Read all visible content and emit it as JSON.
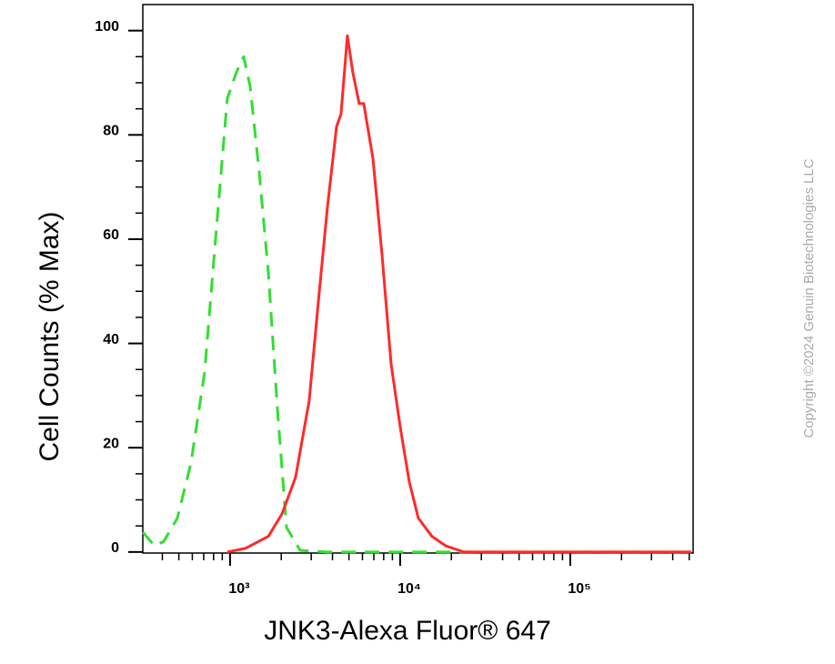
{
  "chart_data": {
    "type": "line",
    "x_label": "JNK3-Alexa Fluor® 647",
    "y_label": "Cell Counts (% Max)",
    "watermark": "Copyright ©2024 Genuin Biotechnologies LLC",
    "xscale": "log",
    "xlim": [
      307,
      527000
    ],
    "ylim": [
      -0.2,
      105
    ],
    "xticks": [
      {
        "value": 1000,
        "label": "10³"
      },
      {
        "value": 10000,
        "label": "10⁴"
      },
      {
        "value": 100000,
        "label": "10⁵"
      }
    ],
    "xminorticks": [
      400,
      500,
      600,
      700,
      800,
      900,
      2000,
      3000,
      4000,
      5000,
      6000,
      7000,
      8000,
      9000,
      20000,
      30000,
      40000,
      50000,
      60000,
      70000,
      80000,
      90000,
      200000,
      300000,
      400000,
      500000
    ],
    "yticks": [
      0,
      20,
      40,
      60,
      80,
      100
    ],
    "yminorticks": [
      5,
      10,
      15,
      25,
      30,
      35,
      45,
      50,
      55,
      65,
      70,
      75,
      85,
      90,
      95
    ],
    "series": [
      {
        "color": "#33dd33",
        "line_style": "dashed",
        "x": [
          307,
          360,
          407,
          490,
          589,
          708,
          831,
          964,
          1090,
          1203,
          1311,
          1483,
          1679,
          1898,
          2147,
          2582,
          3733,
          514000
        ],
        "values": [
          3.8,
          1.2,
          2,
          6.5,
          17,
          34.4,
          62,
          87,
          92,
          95,
          89.4,
          73,
          53.6,
          27.4,
          4.7,
          0.3,
          0,
          0
        ]
      },
      {
        "color": "#ff2a2a",
        "line_style": "solid",
        "x": [
          963,
          1233,
          1679,
          2018,
          2427,
          2917,
          3302,
          3733,
          4224,
          4490,
          4893,
          5270,
          5745,
          6107,
          6918,
          7821,
          8850,
          10000,
          11300,
          12790,
          15380,
          18490,
          23660,
          514000
        ],
        "values": [
          0,
          0.7,
          3,
          7.3,
          14.3,
          29,
          48,
          66,
          81.6,
          84,
          99,
          92,
          86,
          86,
          75.5,
          57,
          36,
          24,
          13.5,
          6.5,
          3,
          1.2,
          0,
          0
        ]
      }
    ]
  }
}
